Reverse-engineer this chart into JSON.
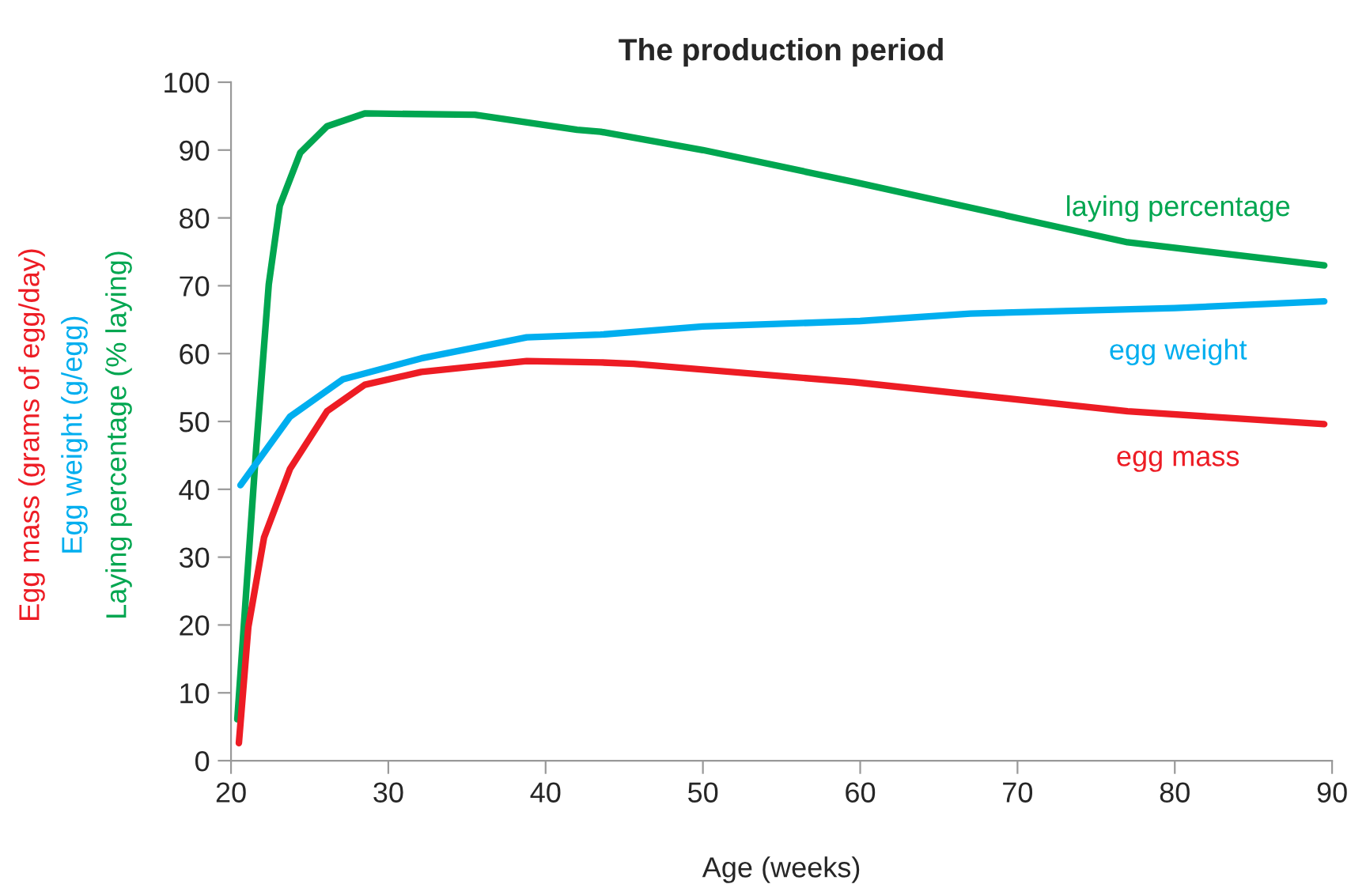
{
  "chart_data": {
    "type": "line",
    "title": "The production period",
    "xlabel": "Age (weeks)",
    "ylabel": "Laying percentage (% laying)",
    "annotations": [
      "Egg weight (g/egg)",
      "Egg mass (grams of egg/day)"
    ],
    "xlim": [
      20,
      90
    ],
    "xticks": [
      20,
      30,
      40,
      50,
      60,
      70,
      80,
      90
    ],
    "ylim": [
      0,
      100
    ],
    "yticks": [
      0,
      10,
      20,
      30,
      40,
      50,
      60,
      70,
      80,
      90,
      100
    ],
    "grid": false,
    "legend": false,
    "marker": "none",
    "line_style": "solid",
    "series": [
      {
        "name": "laying percentage",
        "color": "#00a650",
        "x": [
          20.4,
          21.6,
          22.4,
          23.1,
          24.4,
          26.1,
          28.5,
          35.5,
          42,
          43.5,
          50,
          59.6,
          77,
          89.5
        ],
        "values": [
          6.1,
          46,
          70.2,
          81.8,
          89.6,
          93.5,
          95.4,
          95.2,
          93,
          92.7,
          90,
          85.3,
          76.4,
          73
        ]
      },
      {
        "name": "egg weight",
        "color": "#00aeef",
        "x": [
          20.6,
          23.75,
          27.1,
          32.1,
          38.8,
          43.5,
          50,
          60,
          67,
          80,
          89.5
        ],
        "values": [
          40.6,
          50.7,
          56.2,
          59.3,
          62.4,
          62.8,
          64,
          64.8,
          65.9,
          66.7,
          67.7
        ]
      },
      {
        "name": "egg mass",
        "color": "#ed1c24",
        "x": [
          20.5,
          21.1,
          22.1,
          23.75,
          26.1,
          28.5,
          32.1,
          38.8,
          43.5,
          45.6,
          59.6,
          77,
          89.5
        ],
        "values": [
          2.6,
          19.7,
          32.9,
          43,
          51.5,
          55.4,
          57.3,
          58.9,
          58.7,
          58.5,
          55.8,
          51.5,
          49.6
        ]
      }
    ]
  }
}
